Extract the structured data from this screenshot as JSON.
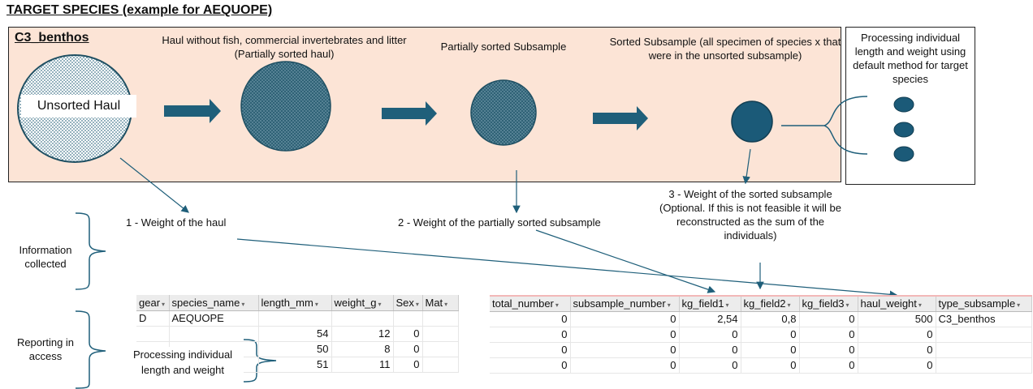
{
  "title": "TARGET SPECIES (example for AEQUOPE)",
  "stage": {
    "label": "C3_benthos",
    "unsorted_haul": "Unsorted Haul",
    "step1_caption": "Haul without fish, commercial invertebrates and litter (Partially sorted haul)",
    "step2_caption": "Partially sorted Subsample",
    "step3_caption": "Sorted Subsample (all specimen of species x that were in the unsorted subsample)",
    "side_caption": "Processing individual length and weight using default method for target species"
  },
  "weights": {
    "w1": "1 - Weight of the haul",
    "w2": "2 - Weight of the partially sorted subsample",
    "w3": "3 - Weight of the sorted subsample (Optional. If this is not feasible it will be reconstructed as the sum of the individuals)"
  },
  "row_labels": {
    "info": "Information collected",
    "report": "Reporting in access"
  },
  "processing_note": "Processing individual length and weight",
  "table1": {
    "headers": [
      "gear",
      "species_name",
      "length_mm",
      "weight_g",
      "Sex",
      "Mat"
    ],
    "rows": [
      [
        "D",
        "AEQUOPE",
        "",
        "",
        "",
        ""
      ],
      [
        "",
        "",
        "54",
        "12",
        "0",
        ""
      ],
      [
        "",
        "",
        "50",
        "8",
        "0",
        ""
      ],
      [
        "",
        "",
        "51",
        "11",
        "0",
        ""
      ]
    ]
  },
  "table2": {
    "headers": [
      "total_number",
      "subsample_number",
      "kg_field1",
      "kg_field2",
      "kg_field3",
      "haul_weight",
      "type_subsample"
    ],
    "rows": [
      [
        "0",
        "0",
        "2,54",
        "0,8",
        "0",
        "500",
        "C3_benthos"
      ],
      [
        "0",
        "0",
        "0",
        "0",
        "0",
        "0",
        ""
      ],
      [
        "0",
        "0",
        "0",
        "0",
        "0",
        "0",
        ""
      ],
      [
        "0",
        "0",
        "0",
        "0",
        "0",
        "0",
        ""
      ]
    ]
  },
  "colors": {
    "stage_bg": "#fce4d6",
    "arrow": "#1f5f7a",
    "circle_fill": "#2f6276",
    "dot_fill": "#1b5a78"
  }
}
